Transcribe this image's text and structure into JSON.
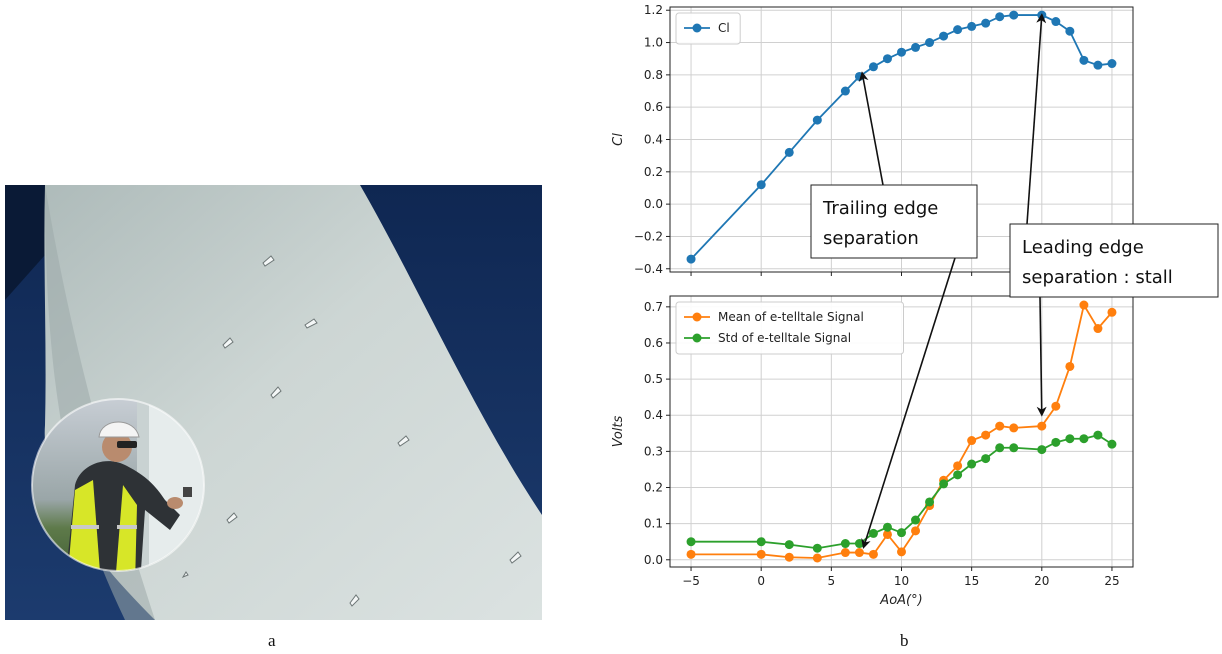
{
  "captions": {
    "left": "a",
    "right": "b"
  },
  "photo": {
    "subject": "wind turbine blade with e-telltale sensors",
    "colors": {
      "sky": "#163262",
      "blade": "#c9d3d1",
      "vest": "#d7e628"
    }
  },
  "annotations": [
    {
      "text_lines": [
        "Trailing edge",
        "separation"
      ]
    },
    {
      "text_lines": [
        "Leading edge",
        "separation : stall"
      ]
    }
  ],
  "chart_data": [
    {
      "type": "line",
      "xlabel": "",
      "ylabel": "Cl",
      "xlim": [
        -6.5,
        26.5
      ],
      "ylim": [
        -0.42,
        1.22
      ],
      "xticks": [
        -5,
        0,
        5,
        10,
        15,
        20,
        25
      ],
      "yticks": [
        -0.4,
        -0.2,
        0.0,
        0.2,
        0.4,
        0.6,
        0.8,
        1.0,
        1.2
      ],
      "ytick_labels": [
        "−0.4",
        "−0.2",
        "0.0",
        "0.2",
        "0.4",
        "0.6",
        "0.8",
        "1.0",
        "1.2"
      ],
      "grid": true,
      "legend_position": "top-left",
      "series": [
        {
          "name": "Cl",
          "color": "#1f77b4",
          "x": [
            -5,
            0,
            2,
            4,
            6,
            7,
            8,
            9,
            10,
            11,
            12,
            13,
            14,
            15,
            16,
            17,
            18,
            20,
            21,
            22,
            23,
            24,
            25
          ],
          "y": [
            -0.34,
            0.12,
            0.32,
            0.52,
            0.7,
            0.79,
            0.85,
            0.9,
            0.94,
            0.97,
            1.0,
            1.04,
            1.08,
            1.1,
            1.12,
            1.16,
            1.17,
            1.17,
            1.13,
            1.07,
            0.89,
            0.86,
            0.87
          ]
        }
      ]
    },
    {
      "type": "line",
      "xlabel": "AoA(°)",
      "ylabel": "Volts",
      "xlim": [
        -6.5,
        26.5
      ],
      "ylim": [
        -0.02,
        0.73
      ],
      "xticks": [
        -5,
        0,
        5,
        10,
        15,
        20,
        25
      ],
      "xtick_labels": [
        "−5",
        "0",
        "5",
        "10",
        "15",
        "20",
        "25"
      ],
      "yticks": [
        0.0,
        0.1,
        0.2,
        0.3,
        0.4,
        0.5,
        0.6,
        0.7
      ],
      "ytick_labels": [
        "0.0",
        "0.1",
        "0.2",
        "0.3",
        "0.4",
        "0.5",
        "0.6",
        "0.7"
      ],
      "grid": true,
      "legend_position": "top-left",
      "series": [
        {
          "name": "Mean of e-telltale Signal",
          "color": "#ff7f0e",
          "x": [
            -5,
            0,
            2,
            4,
            6,
            7,
            8,
            9,
            10,
            11,
            12,
            13,
            14,
            15,
            16,
            17,
            18,
            20,
            21,
            22,
            23,
            24,
            25
          ],
          "y": [
            0.015,
            0.015,
            0.007,
            0.005,
            0.02,
            0.02,
            0.015,
            0.07,
            0.022,
            0.08,
            0.15,
            0.22,
            0.26,
            0.33,
            0.345,
            0.37,
            0.365,
            0.37,
            0.425,
            0.535,
            0.705,
            0.64,
            0.685
          ]
        },
        {
          "name": "Std of e-telltale Signal",
          "color": "#2ca02c",
          "x": [
            -5,
            0,
            2,
            4,
            6,
            7,
            8,
            9,
            10,
            11,
            12,
            13,
            14,
            15,
            16,
            17,
            18,
            20,
            21,
            22,
            23,
            24,
            25
          ],
          "y": [
            0.05,
            0.05,
            0.042,
            0.032,
            0.045,
            0.045,
            0.073,
            0.09,
            0.075,
            0.11,
            0.16,
            0.21,
            0.235,
            0.265,
            0.28,
            0.31,
            0.31,
            0.305,
            0.325,
            0.335,
            0.335,
            0.345,
            0.32
          ]
        }
      ]
    }
  ]
}
